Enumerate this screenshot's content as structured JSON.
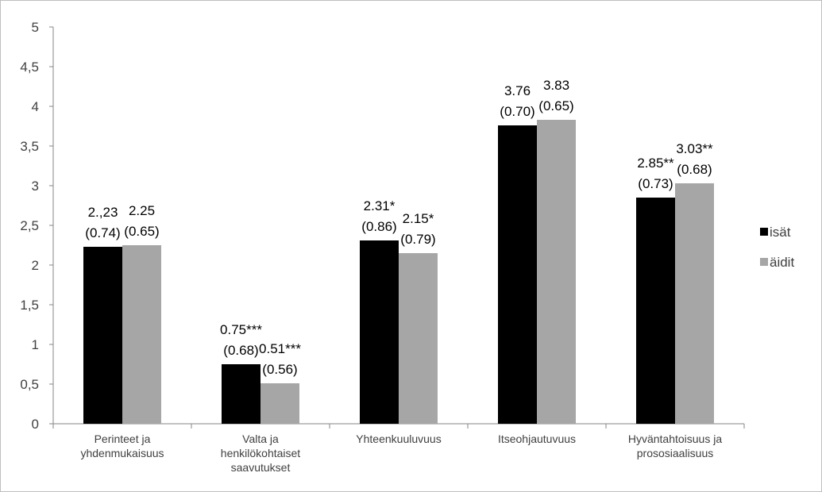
{
  "chart_data": {
    "type": "bar",
    "categories": [
      [
        "Perinteet ja",
        "yhdenmukaisuus"
      ],
      [
        "Valta ja",
        "henkilökohtaiset",
        "saavutukset"
      ],
      [
        "Yhteenkuuluvuus"
      ],
      [
        "Itseohjautuvuus"
      ],
      [
        "Hyväntahtoisuus ja",
        "prososiaalisuus"
      ]
    ],
    "series": [
      {
        "name": "isät",
        "color": "#000000",
        "values": [
          2.23,
          0.75,
          2.31,
          3.76,
          2.85
        ],
        "labels": [
          [
            "2.,23",
            "(0.74)"
          ],
          [
            "0.75***",
            "(0.68)"
          ],
          [
            "2.31*",
            "(0.86)"
          ],
          [
            "3.76",
            "(0.70)"
          ],
          [
            "2.85**",
            "(0.73)"
          ]
        ]
      },
      {
        "name": "äidit",
        "color": "#a6a6a6",
        "values": [
          2.25,
          0.51,
          2.15,
          3.83,
          3.03
        ],
        "labels": [
          [
            "2.25",
            "(0.65)"
          ],
          [
            "0.51***",
            "(0.56)"
          ],
          [
            "2.15*",
            "(0.79)"
          ],
          [
            "3.83",
            "(0.65)"
          ],
          [
            "3.03**",
            "(0.68)"
          ]
        ]
      }
    ],
    "ylim": [
      0,
      5
    ],
    "yticks": [
      "0",
      "0,5",
      "1",
      "1,5",
      "2",
      "2,5",
      "3",
      "3,5",
      "4",
      "4,5",
      "5"
    ],
    "grid": false,
    "legend": "right"
  }
}
